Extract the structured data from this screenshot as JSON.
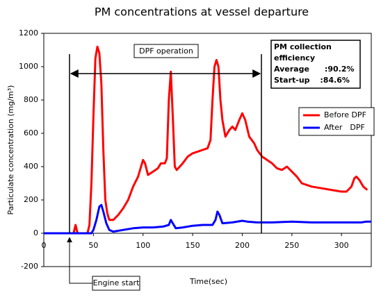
{
  "chart_data": {
    "type": "line",
    "title": "PM concentrations at vessel departure",
    "x_label": "Time(sec)",
    "y_label": "Particulate concentration (mg/m³)",
    "xlim": [
      0,
      330
    ],
    "ylim": [
      -200,
      1200
    ],
    "xticks": [
      0,
      50,
      100,
      150,
      200,
      250,
      300
    ],
    "yticks": [
      -200,
      0,
      200,
      400,
      600,
      800,
      1000,
      1200
    ],
    "grid": false,
    "legend": "upper right",
    "annotations": {
      "dpf_operation": "DPF operation",
      "engine_start": "Engine start",
      "efficiency_title": "PM collection efficiency",
      "average": "Average　　:90.2%",
      "startup": "Start-up　 :84.6%"
    },
    "series": [
      {
        "name": "Before DPF",
        "color": "#ff0000",
        "x": [
          0,
          10,
          20,
          30,
          32,
          34,
          40,
          44,
          46,
          48,
          50,
          52,
          54,
          56,
          58,
          60,
          62,
          64,
          66,
          70,
          75,
          80,
          85,
          90,
          95,
          100,
          102,
          105,
          110,
          115,
          118,
          122,
          124,
          126,
          128,
          130,
          132,
          134,
          140,
          145,
          150,
          155,
          160,
          165,
          168,
          170,
          172,
          174,
          176,
          178,
          180,
          183,
          187,
          190,
          193,
          197,
          200,
          203,
          207,
          212,
          215,
          220,
          225,
          230,
          235,
          240,
          245,
          250,
          255,
          260,
          270,
          280,
          290,
          300,
          305,
          310,
          313,
          315,
          318,
          322,
          326
        ],
        "values": [
          0,
          0,
          0,
          0,
          50,
          0,
          0,
          0,
          50,
          300,
          700,
          1050,
          1120,
          1080,
          900,
          500,
          200,
          120,
          80,
          80,
          110,
          150,
          200,
          280,
          340,
          440,
          420,
          350,
          370,
          390,
          420,
          420,
          450,
          800,
          970,
          700,
          400,
          380,
          420,
          460,
          480,
          490,
          500,
          510,
          560,
          800,
          1000,
          1040,
          1000,
          800,
          680,
          580,
          620,
          640,
          620,
          680,
          720,
          680,
          580,
          540,
          500,
          460,
          440,
          420,
          390,
          380,
          400,
          370,
          340,
          300,
          280,
          270,
          260,
          250,
          250,
          280,
          330,
          340,
          320,
          280,
          260
        ]
      },
      {
        "name": "After　DPF",
        "color": "#0000ff",
        "x": [
          0,
          48,
          50,
          53,
          56,
          58,
          60,
          63,
          66,
          70,
          80,
          90,
          100,
          110,
          120,
          126,
          128,
          130,
          133,
          140,
          150,
          160,
          170,
          173,
          175,
          177,
          180,
          190,
          200,
          205,
          215,
          230,
          250,
          270,
          300,
          320,
          325,
          330
        ],
        "values": [
          0,
          0,
          20,
          80,
          160,
          170,
          130,
          60,
          20,
          10,
          20,
          30,
          35,
          35,
          40,
          50,
          80,
          60,
          30,
          35,
          45,
          50,
          50,
          80,
          130,
          110,
          60,
          65,
          75,
          70,
          65,
          65,
          70,
          65,
          65,
          65,
          70,
          70
        ]
      }
    ]
  }
}
